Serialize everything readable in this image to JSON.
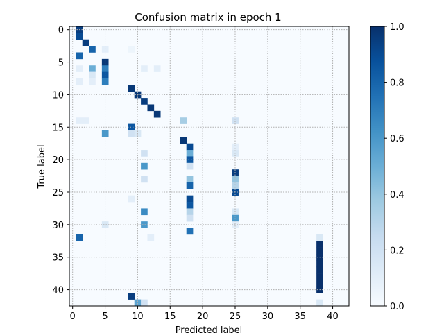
{
  "chart_data": {
    "type": "heatmap",
    "title": "Confusion matrix in epoch 1",
    "xlabel": "Predicted label",
    "ylabel": "True label",
    "n_classes": 43,
    "xticks": [
      0,
      5,
      10,
      15,
      20,
      25,
      30,
      35,
      40
    ],
    "yticks": [
      0,
      5,
      10,
      15,
      20,
      25,
      30,
      35,
      40
    ],
    "colorbar": {
      "min": 0.0,
      "max": 1.0,
      "ticks": [
        0.0,
        0.2,
        0.4,
        0.6,
        0.8,
        1.0
      ],
      "tick_labels": [
        "0.0",
        "0.2",
        "0.4",
        "0.6",
        "0.8",
        "1.0"
      ],
      "colormap": "Blues"
    },
    "grid": true,
    "cells": [
      [
        0,
        1,
        0.95
      ],
      [
        1,
        1,
        0.9
      ],
      [
        2,
        2,
        0.95
      ],
      [
        3,
        3,
        0.8
      ],
      [
        3,
        5,
        0.1
      ],
      [
        3,
        9,
        0.05
      ],
      [
        4,
        1,
        0.8
      ],
      [
        5,
        5,
        0.97
      ],
      [
        6,
        3,
        0.5
      ],
      [
        6,
        5,
        0.7
      ],
      [
        6,
        1,
        0.1
      ],
      [
        6,
        11,
        0.1
      ],
      [
        6,
        13,
        0.1
      ],
      [
        7,
        5,
        0.85
      ],
      [
        7,
        3,
        0.15
      ],
      [
        8,
        5,
        0.7
      ],
      [
        8,
        1,
        0.1
      ],
      [
        8,
        3,
        0.1
      ],
      [
        9,
        9,
        0.97
      ],
      [
        10,
        10,
        0.97
      ],
      [
        11,
        11,
        0.95
      ],
      [
        12,
        12,
        0.97
      ],
      [
        13,
        13,
        0.97
      ],
      [
        14,
        17,
        0.35
      ],
      [
        14,
        25,
        0.2
      ],
      [
        14,
        1,
        0.1
      ],
      [
        14,
        2,
        0.1
      ],
      [
        15,
        9,
        0.85
      ],
      [
        16,
        5,
        0.6
      ],
      [
        16,
        9,
        0.2
      ],
      [
        16,
        10,
        0.15
      ],
      [
        17,
        17,
        0.97
      ],
      [
        18,
        18,
        0.9
      ],
      [
        18,
        25,
        0.1
      ],
      [
        19,
        18,
        0.5
      ],
      [
        19,
        11,
        0.2
      ],
      [
        19,
        25,
        0.15
      ],
      [
        20,
        18,
        0.85
      ],
      [
        21,
        11,
        0.6
      ],
      [
        21,
        18,
        0.2
      ],
      [
        22,
        25,
        0.95
      ],
      [
        23,
        25,
        0.4
      ],
      [
        23,
        18,
        0.4
      ],
      [
        23,
        11,
        0.2
      ],
      [
        24,
        18,
        0.8
      ],
      [
        24,
        25,
        0.3
      ],
      [
        25,
        25,
        0.9
      ],
      [
        26,
        18,
        0.9
      ],
      [
        26,
        9,
        0.1
      ],
      [
        27,
        18,
        0.85
      ],
      [
        28,
        11,
        0.65
      ],
      [
        28,
        18,
        0.3
      ],
      [
        28,
        25,
        0.15
      ],
      [
        29,
        25,
        0.6
      ],
      [
        29,
        18,
        0.2
      ],
      [
        30,
        11,
        0.6
      ],
      [
        30,
        5,
        0.15
      ],
      [
        30,
        25,
        0.1
      ],
      [
        31,
        18,
        0.75
      ],
      [
        32,
        1,
        0.8
      ],
      [
        32,
        12,
        0.1
      ],
      [
        32,
        38,
        0.15
      ],
      [
        33,
        38,
        1.0
      ],
      [
        34,
        38,
        1.0
      ],
      [
        35,
        38,
        1.0
      ],
      [
        36,
        38,
        1.0
      ],
      [
        37,
        38,
        1.0
      ],
      [
        38,
        38,
        1.0
      ],
      [
        39,
        38,
        1.0
      ],
      [
        40,
        38,
        1.0
      ],
      [
        41,
        9,
        0.95
      ],
      [
        42,
        10,
        0.55
      ],
      [
        42,
        11,
        0.2
      ],
      [
        42,
        38,
        0.15
      ]
    ]
  }
}
